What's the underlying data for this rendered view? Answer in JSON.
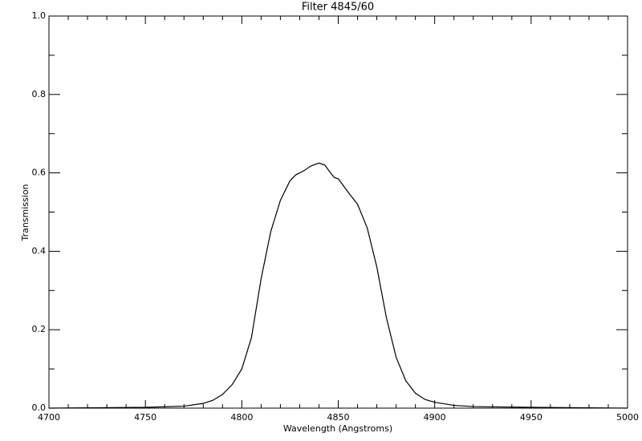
{
  "chart_data": {
    "type": "line",
    "title": "Filter 4845/60",
    "x_label": "Wavelength (Angstroms)",
    "y_label": "Transmission",
    "x": [
      4700,
      4750,
      4770,
      4780,
      4785,
      4790,
      4795,
      4800,
      4805,
      4810,
      4815,
      4820,
      4825,
      4828,
      4832,
      4836,
      4840,
      4843,
      4846,
      4848,
      4850,
      4853,
      4856,
      4860,
      4865,
      4870,
      4875,
      4880,
      4885,
      4890,
      4895,
      4900,
      4910,
      4920,
      4950,
      5000
    ],
    "series": [
      {
        "name": "Transmission",
        "color": "#000000",
        "values": [
          0.0,
          0.002,
          0.005,
          0.012,
          0.02,
          0.035,
          0.06,
          0.1,
          0.18,
          0.33,
          0.45,
          0.53,
          0.58,
          0.595,
          0.605,
          0.618,
          0.625,
          0.62,
          0.6,
          0.588,
          0.585,
          0.565,
          0.545,
          0.52,
          0.46,
          0.36,
          0.23,
          0.13,
          0.07,
          0.038,
          0.022,
          0.015,
          0.007,
          0.004,
          0.002,
          0.0
        ]
      }
    ],
    "xlim": [
      4700,
      5000
    ],
    "ylim": [
      0,
      1
    ],
    "xticks": [
      4700,
      4750,
      4800,
      4850,
      4900,
      4950,
      5000
    ],
    "yticks": [
      {
        "value": 0,
        "label": "0.0"
      },
      0.2,
      0.4,
      0.6,
      0.8,
      {
        "value": 1,
        "label": "1.0"
      }
    ],
    "xminorticks": [
      4710,
      4720,
      4730,
      4740,
      4760,
      4770,
      4780,
      4790,
      4810,
      4820,
      4830,
      4840,
      4860,
      4870,
      4880,
      4890,
      4910,
      4920,
      4930,
      4940,
      4960,
      4970,
      4980,
      4990
    ],
    "yminorticks": [
      0.1,
      0.3,
      0.5,
      0.7,
      0.9
    ]
  }
}
